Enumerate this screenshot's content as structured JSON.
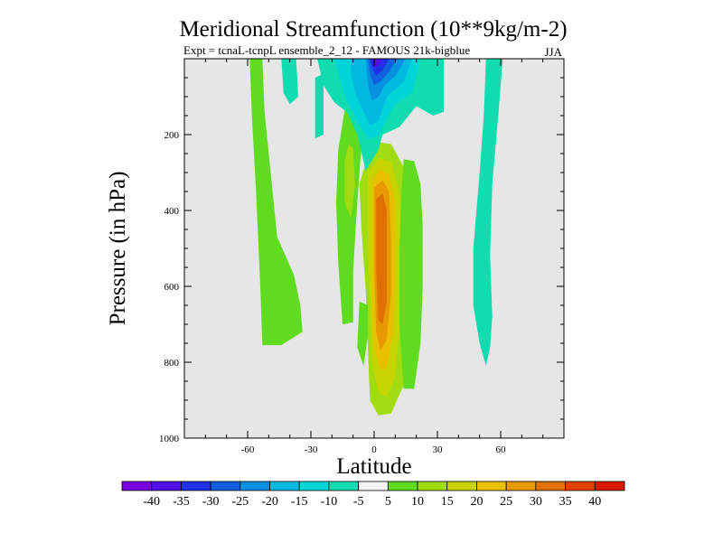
{
  "chart_data": {
    "type": "contour",
    "title": "Meridional Streamfunction (10**9kg/m-2)",
    "subtitle": "Expt = tcnaL-tcnpL ensemble_2_12 - FAMOUS 21k-bigblue",
    "season": "JJA",
    "xlabel": "Latitude",
    "ylabel": "Pressure (in hPa)",
    "xlim": [
      -90,
      90
    ],
    "ylim": [
      1000,
      0
    ],
    "x_ticks": [
      -60,
      -30,
      0,
      30,
      60
    ],
    "y_ticks": [
      200,
      400,
      600,
      800,
      1000
    ],
    "background_color": "#e6e6e6",
    "levels": [
      -40,
      -35,
      -30,
      -25,
      -20,
      -15,
      -10,
      -5,
      5,
      10,
      15,
      20,
      25,
      30,
      35,
      40
    ],
    "colors": [
      "#7a00e0",
      "#5010e8",
      "#2030e8",
      "#1060e0",
      "#0890e0",
      "#00b8e0",
      "#00d4d8",
      "#10dcb0",
      "#f2f2f2",
      "#60dc20",
      "#a0dc10",
      "#c8d400",
      "#e8c000",
      "#e89800",
      "#e07000",
      "#e04000",
      "#d81800"
    ],
    "regions": [
      {
        "name": "nh-subtropical-positive-cell",
        "band": "10-15",
        "points": [
          [
            -7,
            330
          ],
          [
            -3,
            255
          ],
          [
            2,
            220
          ],
          [
            8,
            225
          ],
          [
            16,
            305
          ],
          [
            18,
            410
          ],
          [
            18,
            640
          ],
          [
            18,
            790
          ],
          [
            14,
            860
          ],
          [
            8,
            935
          ],
          [
            2,
            940
          ],
          [
            -2,
            900
          ],
          [
            -3,
            760
          ],
          [
            -4,
            610
          ],
          [
            -6,
            450
          ]
        ]
      },
      {
        "name": "nh-subtropical-inner-1",
        "band": "15-20",
        "points": [
          [
            -3,
            300
          ],
          [
            2,
            262
          ],
          [
            8,
            272
          ],
          [
            12,
            350
          ],
          [
            13,
            520
          ],
          [
            12,
            710
          ],
          [
            10,
            840
          ],
          [
            6,
            890
          ],
          [
            2,
            880
          ],
          [
            -1,
            800
          ],
          [
            -2,
            640
          ],
          [
            -3,
            480
          ]
        ]
      },
      {
        "name": "nh-subtropical-inner-2",
        "band": "20-25",
        "points": [
          [
            -1,
            320
          ],
          [
            3,
            290
          ],
          [
            7,
            305
          ],
          [
            10,
            380
          ],
          [
            10,
            560
          ],
          [
            9,
            720
          ],
          [
            6,
            815
          ],
          [
            3,
            822
          ],
          [
            0,
            760
          ],
          [
            -1,
            600
          ],
          [
            -1,
            450
          ]
        ]
      },
      {
        "name": "nh-subtropical-inner-3",
        "band": "25-30",
        "points": [
          [
            0,
            340
          ],
          [
            4,
            320
          ],
          [
            7,
            350
          ],
          [
            8,
            470
          ],
          [
            8,
            620
          ],
          [
            6,
            740
          ],
          [
            3,
            770
          ],
          [
            1,
            720
          ],
          [
            0,
            560
          ]
        ]
      },
      {
        "name": "nh-subtropical-core",
        "band": "30-35",
        "points": [
          [
            1,
            370
          ],
          [
            4,
            355
          ],
          [
            6,
            400
          ],
          [
            6,
            520
          ],
          [
            6,
            640
          ],
          [
            4,
            700
          ],
          [
            2,
            690
          ],
          [
            1,
            560
          ]
        ]
      },
      {
        "name": "sh-midlatitude-positive",
        "band": "5-10",
        "points": [
          [
            -59,
            0
          ],
          [
            -53,
            0
          ],
          [
            -52,
            140
          ],
          [
            -46,
            470
          ],
          [
            -38,
            570
          ],
          [
            -35,
            650
          ],
          [
            -34,
            720
          ],
          [
            -44,
            755
          ],
          [
            -53,
            755
          ],
          [
            -54,
            600
          ],
          [
            -56,
            350
          ],
          [
            -58,
            150
          ]
        ]
      },
      {
        "name": "subtropical-positive-sliver",
        "band": "5-10",
        "points": [
          [
            -17,
            240
          ],
          [
            -13,
            100
          ],
          [
            -9,
            90
          ],
          [
            -6,
            225
          ],
          [
            -8,
            380
          ],
          [
            -10,
            560
          ],
          [
            -10,
            695
          ],
          [
            -15,
            700
          ],
          [
            -17,
            540
          ],
          [
            -18,
            380
          ]
        ]
      },
      {
        "name": "subtropical-positive-sliver-inner",
        "band": "10-15",
        "points": [
          [
            -14,
            270
          ],
          [
            -12,
            225
          ],
          [
            -10,
            235
          ],
          [
            -9,
            330
          ],
          [
            -11,
            420
          ],
          [
            -14,
            380
          ]
        ]
      },
      {
        "name": "nh-outer-positive-cell",
        "band": "5-10",
        "points": [
          [
            14,
            265
          ],
          [
            19,
            270
          ],
          [
            22,
            330
          ],
          [
            23,
            440
          ],
          [
            23,
            600
          ],
          [
            22,
            750
          ],
          [
            19,
            870
          ],
          [
            14,
            870
          ],
          [
            12,
            700
          ],
          [
            12,
            500
          ],
          [
            13,
            350
          ]
        ]
      },
      {
        "name": "equatorial-lower-positive",
        "band": "5-10",
        "points": [
          [
            -7,
            640
          ],
          [
            -3,
            650
          ],
          [
            -3,
            730
          ],
          [
            -5,
            810
          ],
          [
            -8,
            760
          ]
        ]
      },
      {
        "name": "sh-upper-negative-1",
        "band": "-10--5",
        "points": [
          [
            -44,
            0
          ],
          [
            -37,
            0
          ],
          [
            -36,
            100
          ],
          [
            -40,
            120
          ],
          [
            -43,
            90
          ]
        ]
      },
      {
        "name": "sh-upper-negative-2",
        "band": "-10--5",
        "points": [
          [
            -28,
            50
          ],
          [
            -24,
            40
          ],
          [
            -24,
            200
          ],
          [
            -28,
            210
          ]
        ]
      },
      {
        "name": "tropical-upper-negative",
        "band": "-10--5",
        "points": [
          [
            -27,
            0
          ],
          [
            33,
            0
          ],
          [
            33,
            140
          ],
          [
            28,
            150
          ],
          [
            20,
            125
          ],
          [
            12,
            180
          ],
          [
            4,
            200
          ],
          [
            2,
            240
          ],
          [
            -4,
            295
          ],
          [
            -8,
            200
          ],
          [
            -13,
            140
          ],
          [
            -19,
            115
          ],
          [
            -24,
            70
          ]
        ]
      },
      {
        "name": "tropical-upper-negative-2",
        "band": "-15--10",
        "points": [
          [
            -19,
            0
          ],
          [
            22,
            0
          ],
          [
            18,
            90
          ],
          [
            10,
            120
          ],
          [
            6,
            160
          ],
          [
            2,
            205
          ],
          [
            -3,
            210
          ],
          [
            -8,
            165
          ],
          [
            -13,
            110
          ],
          [
            -16,
            60
          ]
        ]
      },
      {
        "name": "tropical-upper-negative-3",
        "band": "-20--15",
        "points": [
          [
            -11,
            0
          ],
          [
            18,
            0
          ],
          [
            14,
            60
          ],
          [
            6,
            100
          ],
          [
            2,
            165
          ],
          [
            -2,
            175
          ],
          [
            -5,
            140
          ],
          [
            -9,
            90
          ],
          [
            -11,
            40
          ]
        ]
      },
      {
        "name": "tropical-upper-negative-4",
        "band": "-25--20",
        "points": [
          [
            -4,
            0
          ],
          [
            15,
            0
          ],
          [
            10,
            45
          ],
          [
            5,
            70
          ],
          [
            2,
            100
          ],
          [
            -1,
            110
          ],
          [
            -3,
            70
          ]
        ]
      },
      {
        "name": "tropical-upper-negative-5",
        "band": "-30--25",
        "points": [
          [
            -3,
            0
          ],
          [
            11,
            0
          ],
          [
            7,
            35
          ],
          [
            3,
            60
          ],
          [
            0,
            70
          ],
          [
            -2,
            40
          ]
        ]
      },
      {
        "name": "tropical-upper-negative-6",
        "band": "-35--30",
        "points": [
          [
            -2,
            0
          ],
          [
            7,
            0
          ],
          [
            4,
            30
          ],
          [
            1,
            45
          ],
          [
            -1,
            25
          ]
        ]
      },
      {
        "name": "tropical-upper-negative-core",
        "band": "-40--35",
        "points": [
          [
            -1,
            0
          ],
          [
            4,
            0
          ],
          [
            2,
            20
          ],
          [
            0,
            25
          ]
        ]
      },
      {
        "name": "nh-midlatitude-negative",
        "band": "-10--5",
        "points": [
          [
            53,
            0
          ],
          [
            61,
            0
          ],
          [
            59,
            140
          ],
          [
            56,
            330
          ],
          [
            55,
            520
          ],
          [
            56,
            680
          ],
          [
            55,
            760
          ],
          [
            53,
            810
          ],
          [
            50,
            750
          ],
          [
            47,
            650
          ],
          [
            47,
            500
          ],
          [
            50,
            300
          ],
          [
            52,
            150
          ]
        ]
      }
    ],
    "colorbar_labels": [
      "-40",
      "-35",
      "-30",
      "-25",
      "-20",
      "-15",
      "-10",
      "-5",
      "5",
      "10",
      "15",
      "20",
      "25",
      "30",
      "35",
      "40"
    ]
  }
}
